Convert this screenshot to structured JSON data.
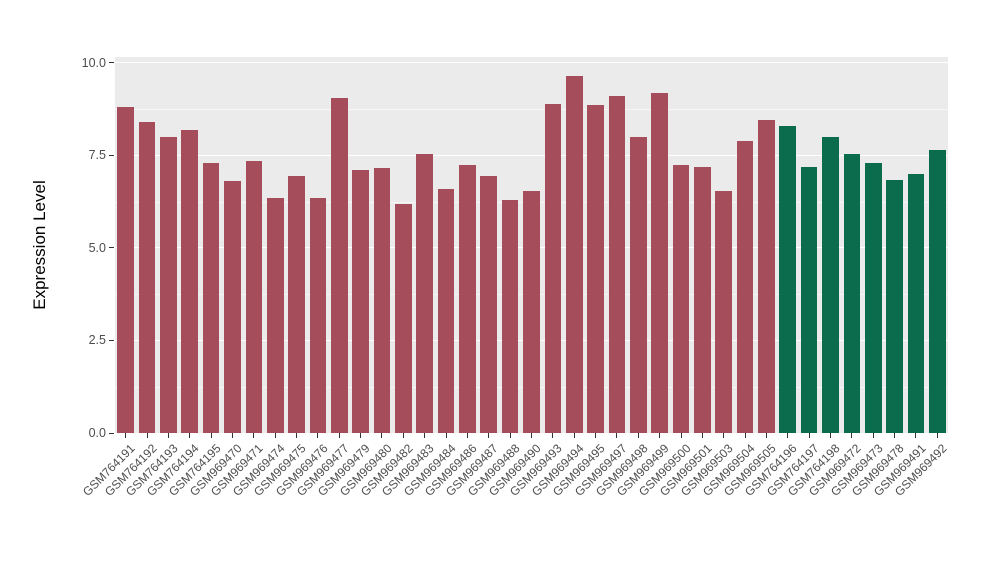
{
  "figure": {
    "background": "#FFFFFF",
    "panel_background": "#EBEBEB",
    "gridline_color": "#FFFFFF",
    "axis_text_color": "#4D4D4D",
    "axis_title_color": "#000000"
  },
  "chart_data": {
    "type": "bar",
    "title": "",
    "xlabel": "",
    "ylabel": "Expression Level",
    "ylim": [
      0,
      10.16
    ],
    "grid": true,
    "legend": "none",
    "yticks": [
      0,
      2.5,
      5,
      7.5,
      10
    ],
    "ytick_labels": [
      "0.0",
      "2.5",
      "5.0",
      "7.5",
      "10.0"
    ],
    "yticks_minor": [
      1.25,
      3.75,
      6.25,
      8.75
    ],
    "categories": [
      "GSM764191",
      "GSM764192",
      "GSM764193",
      "GSM764194",
      "GSM764195",
      "GSM969470",
      "GSM969471",
      "GSM969474",
      "GSM969475",
      "GSM969476",
      "GSM969477",
      "GSM969479",
      "GSM969480",
      "GSM969482",
      "GSM969483",
      "GSM969484",
      "GSM969486",
      "GSM969487",
      "GSM969488",
      "GSM969490",
      "GSM969493",
      "GSM969494",
      "GSM969495",
      "GSM969497",
      "GSM969498",
      "GSM969499",
      "GSM969500",
      "GSM969501",
      "GSM969503",
      "GSM969504",
      "GSM969505",
      "GSM764196",
      "GSM764197",
      "GSM764198",
      "GSM969472",
      "GSM969473",
      "GSM969478",
      "GSM969491",
      "GSM969492"
    ],
    "values": [
      8.8,
      8.4,
      8.0,
      8.2,
      7.3,
      6.8,
      7.35,
      6.35,
      6.95,
      6.35,
      9.05,
      7.1,
      7.15,
      6.2,
      7.55,
      6.6,
      7.25,
      6.95,
      6.3,
      6.55,
      8.9,
      9.65,
      8.85,
      9.1,
      8.0,
      9.2,
      7.25,
      7.2,
      6.55,
      7.9,
      8.45,
      8.3,
      7.2,
      8.0,
      7.55,
      7.3,
      6.85,
      7.0,
      7.65
    ],
    "groups": [
      0,
      0,
      0,
      0,
      0,
      0,
      0,
      0,
      0,
      0,
      0,
      0,
      0,
      0,
      0,
      0,
      0,
      0,
      0,
      0,
      0,
      0,
      0,
      0,
      0,
      0,
      0,
      0,
      0,
      0,
      0,
      1,
      1,
      1,
      1,
      1,
      1,
      1,
      1
    ],
    "group_colors": [
      "#A54D5A",
      "#0B6B4D"
    ]
  }
}
